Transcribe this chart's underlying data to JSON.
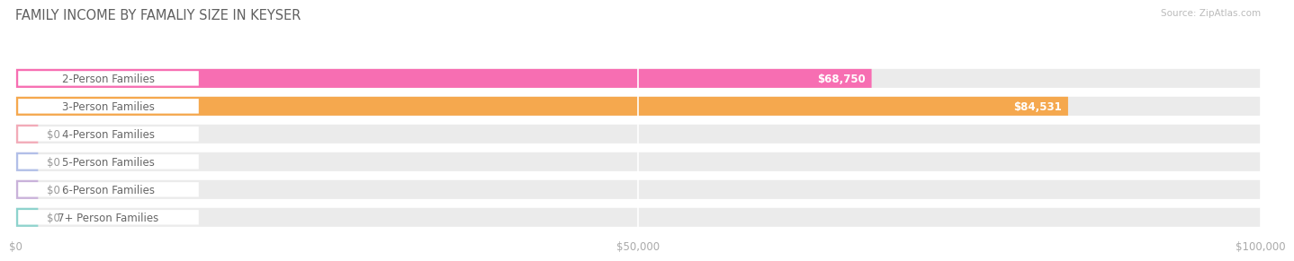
{
  "title": "FAMILY INCOME BY FAMALIY SIZE IN KEYSER",
  "source": "Source: ZipAtlas.com",
  "categories": [
    "2-Person Families",
    "3-Person Families",
    "4-Person Families",
    "5-Person Families",
    "6-Person Families",
    "7+ Person Families"
  ],
  "values": [
    68750,
    84531,
    0,
    0,
    0,
    0
  ],
  "bar_colors": [
    "#f76eb2",
    "#f5a84e",
    "#f4a0b0",
    "#a8b8e8",
    "#c4a8d8",
    "#7ecfc8"
  ],
  "value_labels": [
    "$68,750",
    "$84,531",
    "$0",
    "$0",
    "$0",
    "$0"
  ],
  "xlim": [
    0,
    100000
  ],
  "xticks": [
    0,
    50000,
    100000
  ],
  "xticklabels": [
    "$0",
    "$50,000",
    "$100,000"
  ],
  "background_color": "#ffffff",
  "bar_bg_color": "#ebebeb",
  "bar_bg_color2": "#f0f0f0",
  "title_fontsize": 10.5,
  "label_fontsize": 8.5,
  "value_fontsize": 8.5
}
